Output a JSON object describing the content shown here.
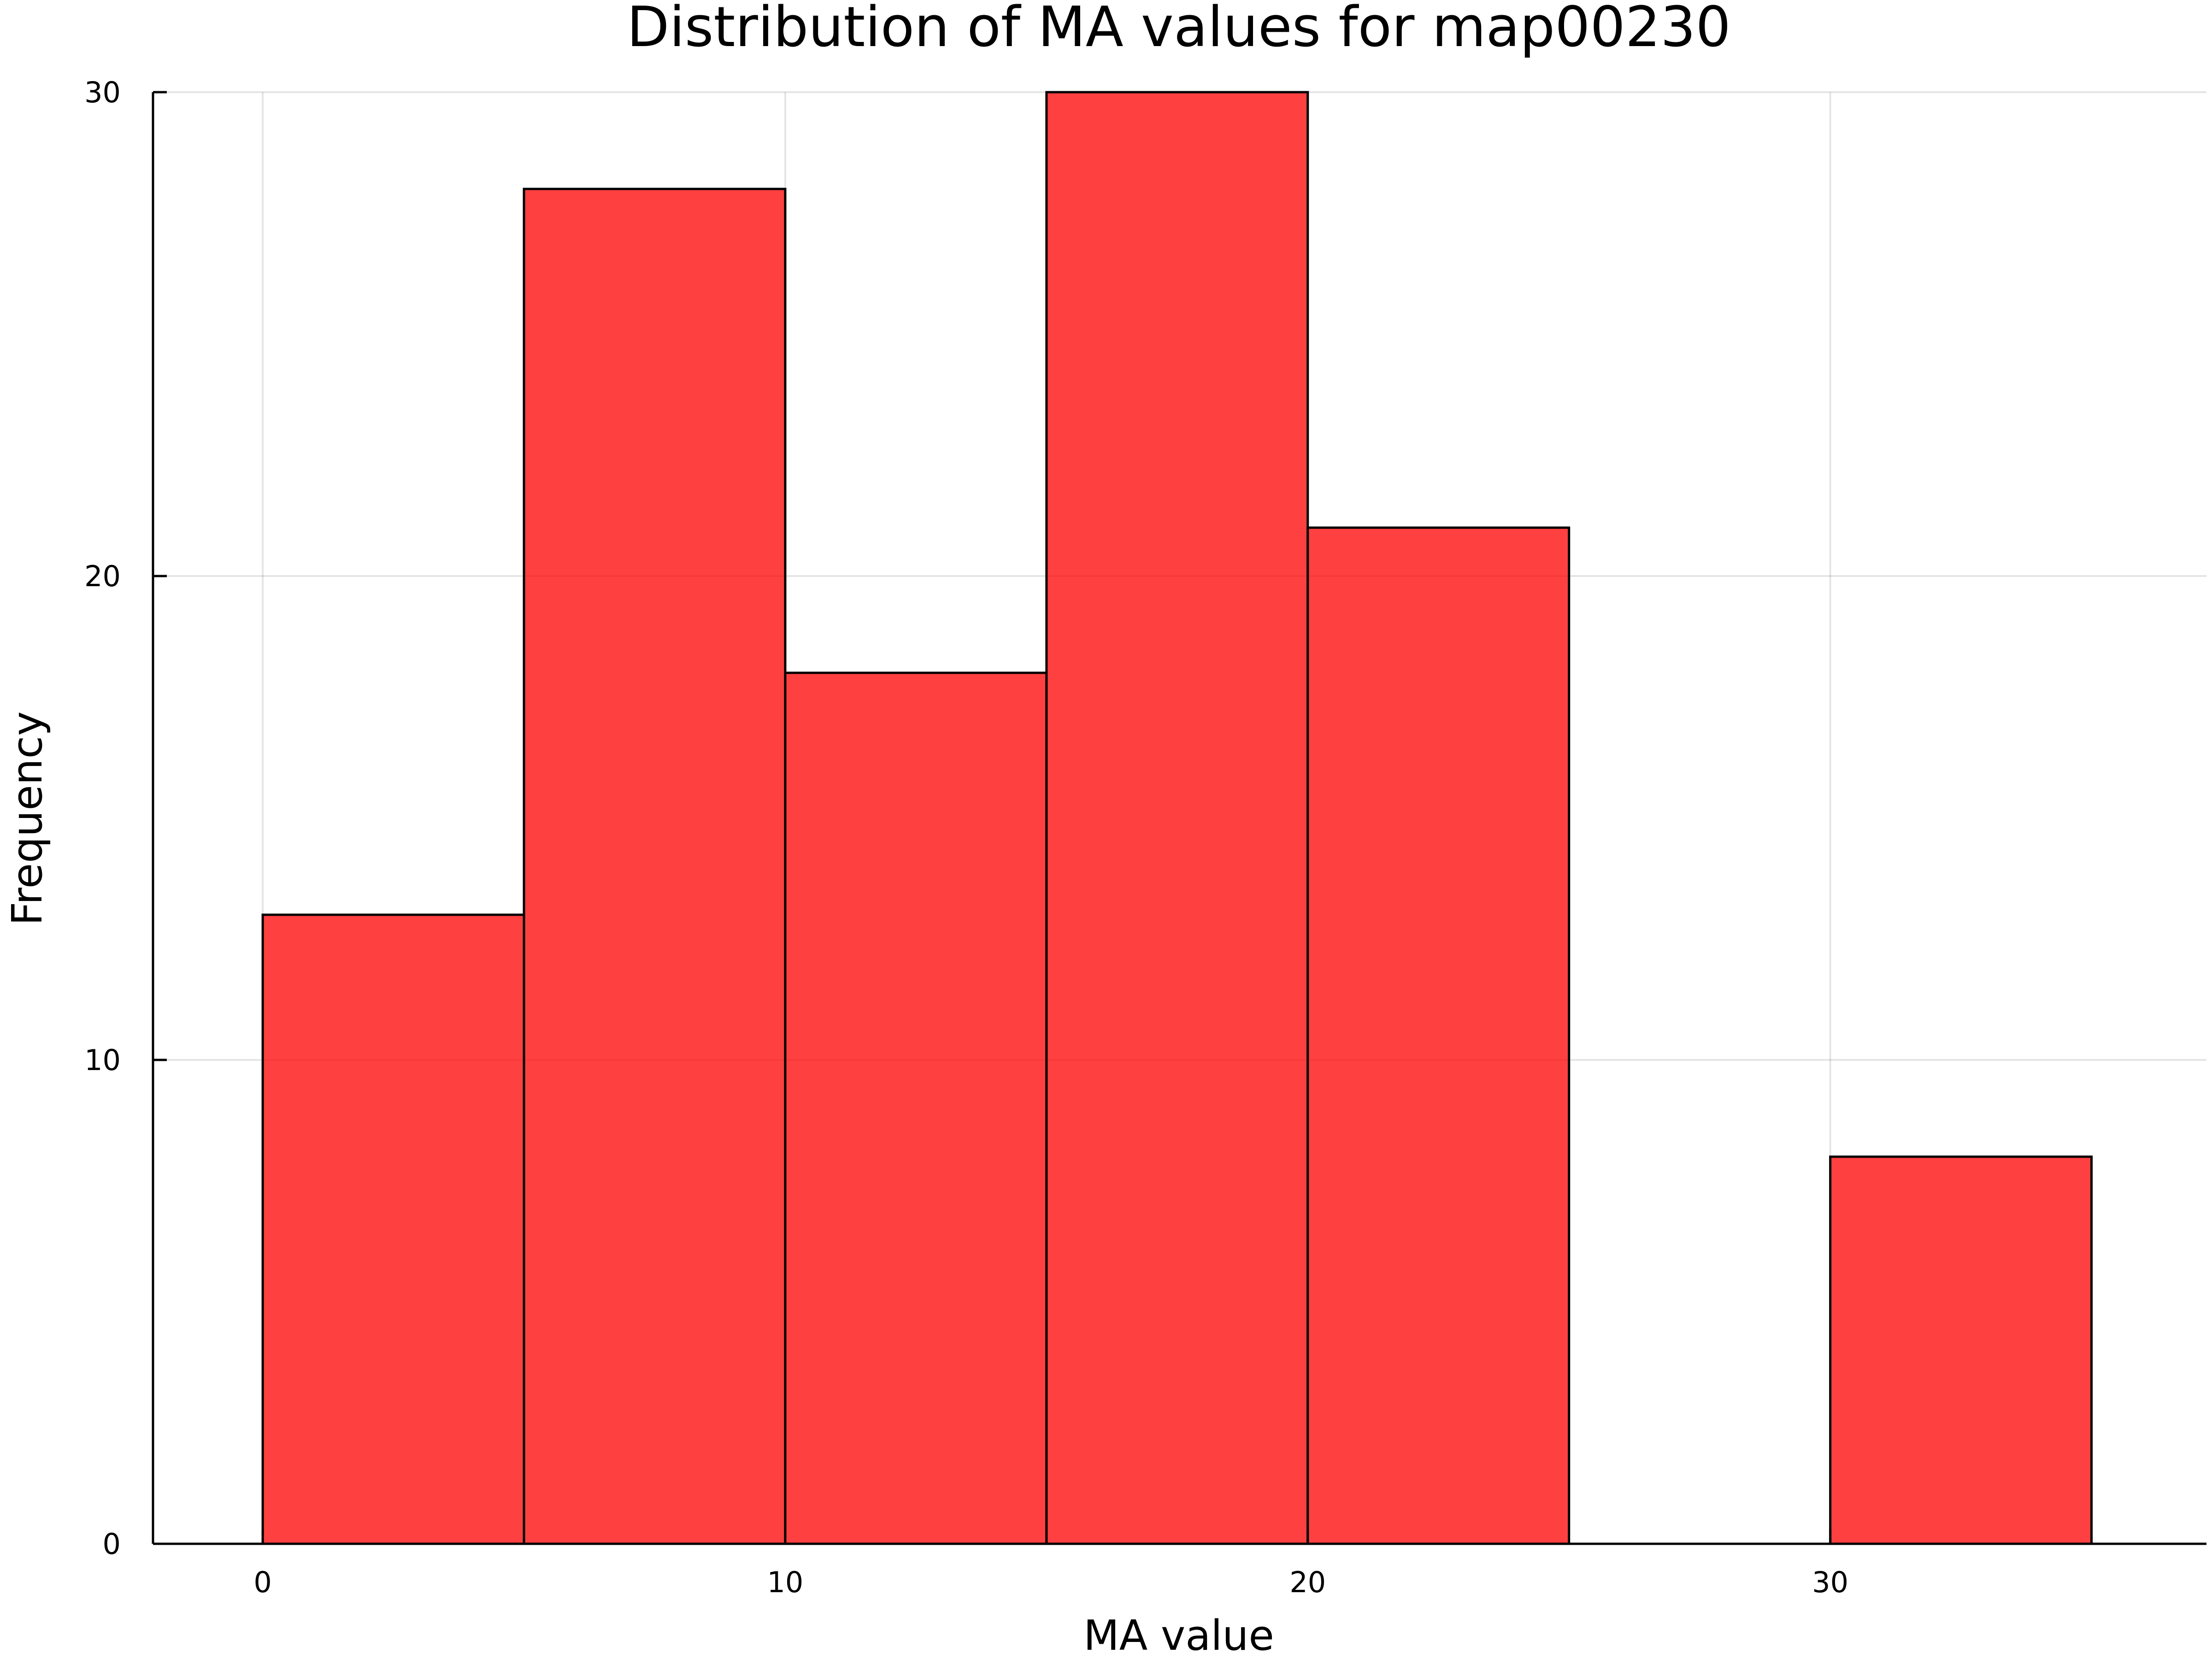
{
  "chart_data": {
    "type": "bar",
    "title": "Distribution of MA values for map00230",
    "xlabel": "MA value",
    "ylabel": "Frequency",
    "xlim": [
      -2.1,
      37.2
    ],
    "ylim": [
      0,
      30
    ],
    "x_ticks": [
      0,
      10,
      20,
      30
    ],
    "y_ticks": [
      0,
      10,
      20,
      30
    ],
    "grid": true,
    "legend": "none",
    "bar_color": "#ff0000",
    "bar_opacity": 0.75,
    "bins": [
      {
        "x0": 0,
        "x1": 5,
        "value": 13
      },
      {
        "x0": 5,
        "x1": 10,
        "value": 28
      },
      {
        "x0": 10,
        "x1": 15,
        "value": 18
      },
      {
        "x0": 15,
        "x1": 20,
        "value": 30
      },
      {
        "x0": 20,
        "x1": 25,
        "value": 21
      },
      {
        "x0": 25,
        "x1": 30,
        "value": 0
      },
      {
        "x0": 30,
        "x1": 35,
        "value": 8
      }
    ]
  }
}
